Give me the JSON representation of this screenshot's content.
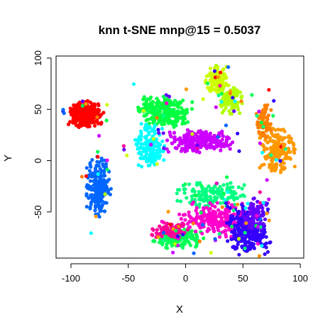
{
  "chart_data": {
    "type": "scatter",
    "title": "knn t-SNE mnp@15 = 0.5037",
    "xlabel": "X",
    "ylabel": "Y",
    "xlim": [
      -113,
      103
    ],
    "ylim": [
      -95,
      102
    ],
    "xticks": [
      -100,
      -50,
      0,
      50,
      100
    ],
    "yticks": [
      -50,
      0,
      50,
      100
    ],
    "grid": false,
    "legend": "none",
    "clusters": [
      {
        "color": "#FF0000",
        "cx": -87,
        "cy": 45,
        "sx": 7,
        "sy": 6,
        "n": 260
      },
      {
        "color": "#00FF40",
        "cx": -18,
        "cy": 48,
        "sx": 11,
        "sy": 7,
        "n": 260
      },
      {
        "color": "#CCFF00",
        "cx": 27,
        "cy": 79,
        "sx": 5,
        "sy": 6,
        "n": 120
      },
      {
        "color": "#B3FF00",
        "cx": 40,
        "cy": 58,
        "sx": 5,
        "sy": 6,
        "n": 100
      },
      {
        "color": "#CC00FF",
        "cx": 12,
        "cy": 19,
        "sx": 14,
        "sy": 5,
        "n": 220
      },
      {
        "color": "#00FFFF",
        "cx": -31,
        "cy": 15,
        "sx": 6,
        "sy": 10,
        "n": 170
      },
      {
        "color": "#FF9900",
        "cx": 80,
        "cy": 10,
        "sx": 7,
        "sy": 10,
        "n": 180
      },
      {
        "color": "#FF8000",
        "cx": 68,
        "cy": 38,
        "sx": 3,
        "sy": 8,
        "n": 70
      },
      {
        "color": "#0066FF",
        "cx": -76,
        "cy": -25,
        "sx": 5,
        "sy": 14,
        "n": 210
      },
      {
        "color": "#00FF80",
        "cx": 22,
        "cy": -33,
        "sx": 14,
        "sy": 6,
        "n": 150
      },
      {
        "color": "#00FF55",
        "cx": -8,
        "cy": -75,
        "sx": 10,
        "sy": 5,
        "n": 140
      },
      {
        "color": "#FF00CC",
        "cx": 28,
        "cy": -58,
        "sx": 16,
        "sy": 8,
        "n": 260
      },
      {
        "color": "#FF0099",
        "cx": -12,
        "cy": -68,
        "sx": 8,
        "sy": 4,
        "n": 80
      },
      {
        "color": "#3300FF",
        "cx": 55,
        "cy": -68,
        "sx": 9,
        "sy": 12,
        "n": 260
      },
      {
        "color": "#6600FF",
        "cx": 60,
        "cy": -52,
        "sx": 5,
        "sy": 7,
        "n": 80
      }
    ]
  }
}
